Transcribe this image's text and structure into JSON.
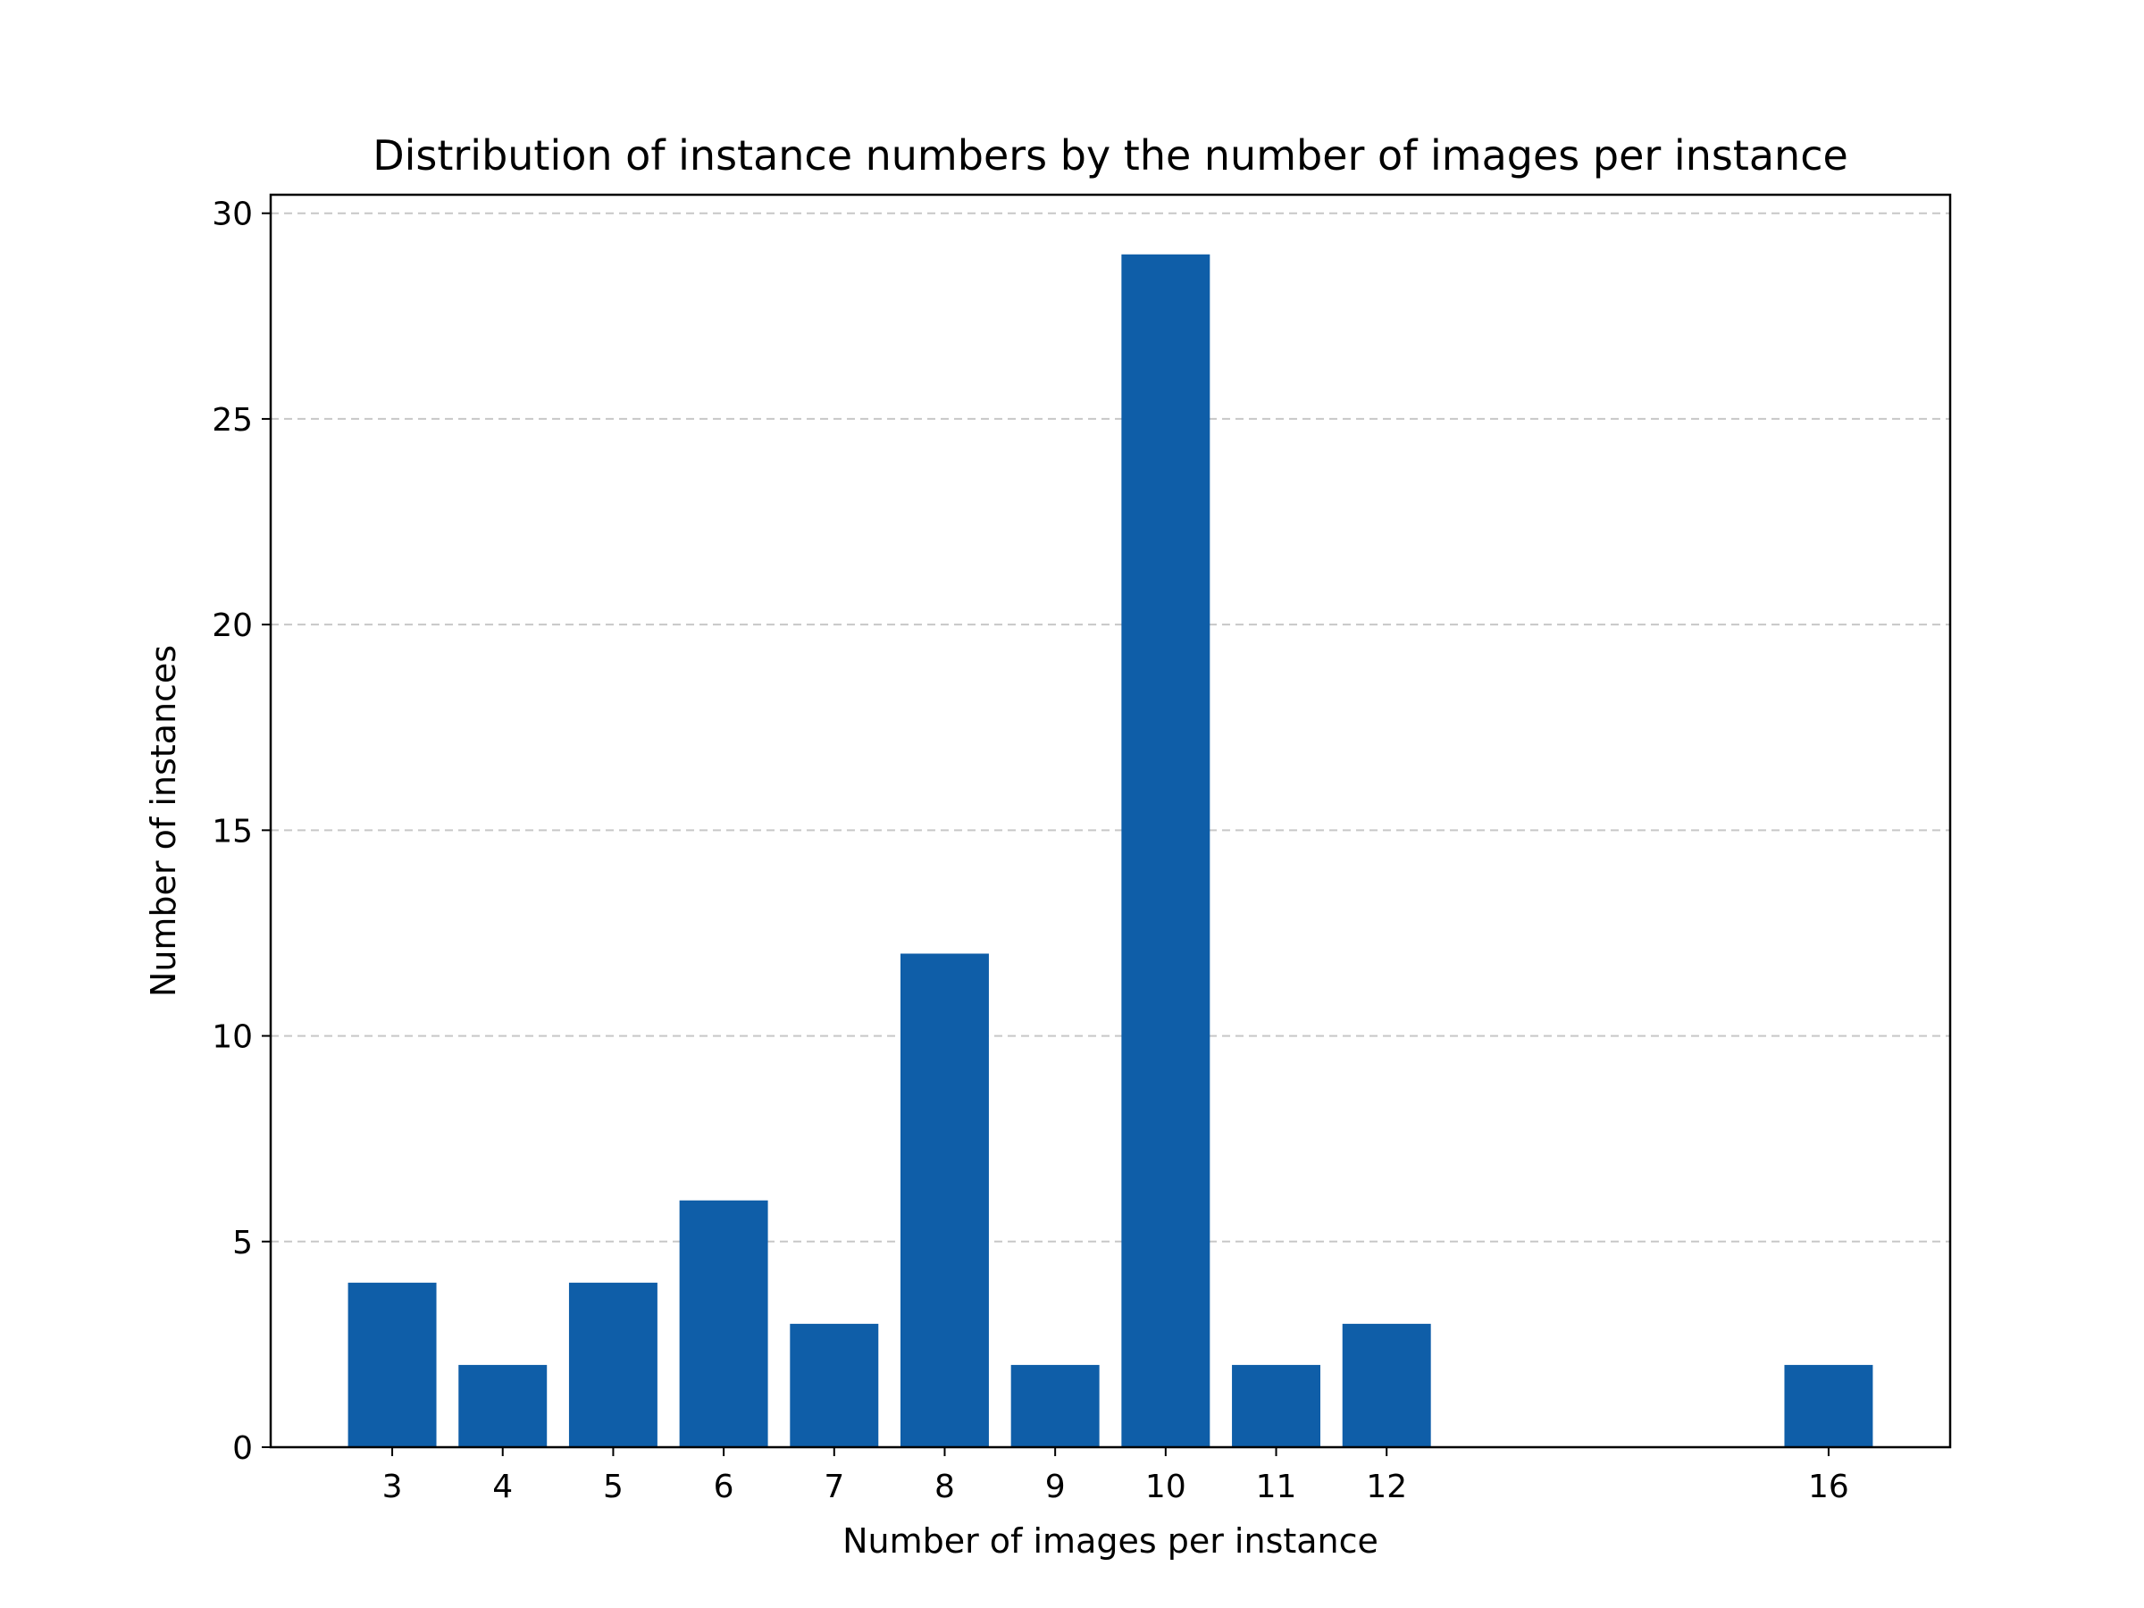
{
  "chart_data": {
    "type": "bar",
    "title": "Distribution of instance numbers by the number of images per instance",
    "xlabel": "Number of images per instance",
    "ylabel": "Number of instances",
    "x": [
      3,
      4,
      5,
      6,
      7,
      8,
      9,
      10,
      11,
      12,
      16
    ],
    "values": [
      4,
      2,
      4,
      6,
      3,
      12,
      2,
      29,
      2,
      3,
      2
    ],
    "x_ticks": [
      3,
      4,
      5,
      6,
      7,
      8,
      9,
      10,
      11,
      12,
      16
    ],
    "y_ticks": [
      0,
      5,
      10,
      15,
      20,
      25,
      30
    ],
    "xlim": [
      1.9,
      17.1
    ],
    "ylim": [
      0,
      30.45
    ],
    "grid": "y-dashed",
    "bar_color": "#0f5ea8",
    "grid_color": "#c7c7c7"
  }
}
